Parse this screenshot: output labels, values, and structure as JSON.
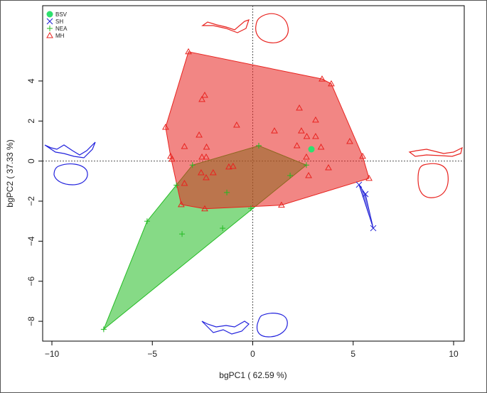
{
  "chart_data": {
    "type": "scatter",
    "x_label": "bgPC1 ( 62.59 %)",
    "y_label": "bgPC2 ( 37.33 %)",
    "xlim": [
      -10.46,
      10.53
    ],
    "ylim": [
      -8.99,
      7.76
    ],
    "xticks": [
      {
        "value": -10,
        "label": "−10"
      },
      {
        "value": -5,
        "label": "−5"
      },
      0,
      5,
      10
    ],
    "yticks": [
      {
        "value": -8,
        "label": "−8"
      },
      {
        "value": -6,
        "label": "−6"
      },
      {
        "value": -4,
        "label": "−4"
      },
      {
        "value": -2,
        "label": "−2"
      },
      0,
      2,
      4
    ],
    "legend": "top-left",
    "series": [
      {
        "name": "BSV",
        "color": "#2ee06e",
        "marker": "circle",
        "hull": false,
        "x": [
          2.92
        ],
        "y": [
          0.59
        ]
      },
      {
        "name": "SH",
        "color": "#1f1fd6",
        "marker": "x",
        "hull": true,
        "x": [
          5.29,
          5.61,
          6.0
        ],
        "y": [
          -1.18,
          -1.65,
          -3.35
        ]
      },
      {
        "name": "NEA",
        "color": "#22bb22",
        "marker": "plus",
        "hull": true,
        "x": [
          -7.42,
          -5.26,
          -3.52,
          -1.5,
          -1.29,
          0.3,
          1.86,
          2.67,
          -3.8,
          -3.0,
          -0.09
        ],
        "y": [
          -8.4,
          -3.0,
          -3.64,
          -3.35,
          -1.57,
          0.77,
          -0.72,
          -0.2,
          -1.2,
          -0.2,
          -2.36
        ]
      },
      {
        "name": "MH",
        "color": "#e8231f",
        "marker": "triangle",
        "hull": true,
        "x": [
          -3.2,
          3.45,
          3.91,
          -2.39,
          -2.53,
          2.32,
          -0.8,
          -4.34,
          3.13,
          -2.67,
          1.08,
          2.42,
          2.69,
          3.13,
          4.83,
          -4.09,
          -4.02,
          -3.4,
          -2.3,
          -2.53,
          -2.32,
          2.2,
          3.4,
          5.47,
          2.67,
          -2.57,
          -2.32,
          -1.97,
          -1.19,
          -0.98,
          3.77,
          2.78,
          5.79,
          -3.4,
          -3.56,
          -2.39,
          1.43
        ],
        "y": [
          5.46,
          4.1,
          3.86,
          3.29,
          3.08,
          2.65,
          1.8,
          1.69,
          2.05,
          1.3,
          1.51,
          1.51,
          1.23,
          1.23,
          0.98,
          0.24,
          0.1,
          0.73,
          0.7,
          0.2,
          0.2,
          0.77,
          0.7,
          0.24,
          0.2,
          -0.58,
          -0.83,
          -0.58,
          -0.29,
          -0.26,
          -0.33,
          -0.72,
          -0.86,
          -1.11,
          -2.17,
          -2.38,
          -2.2
        ]
      }
    ]
  }
}
